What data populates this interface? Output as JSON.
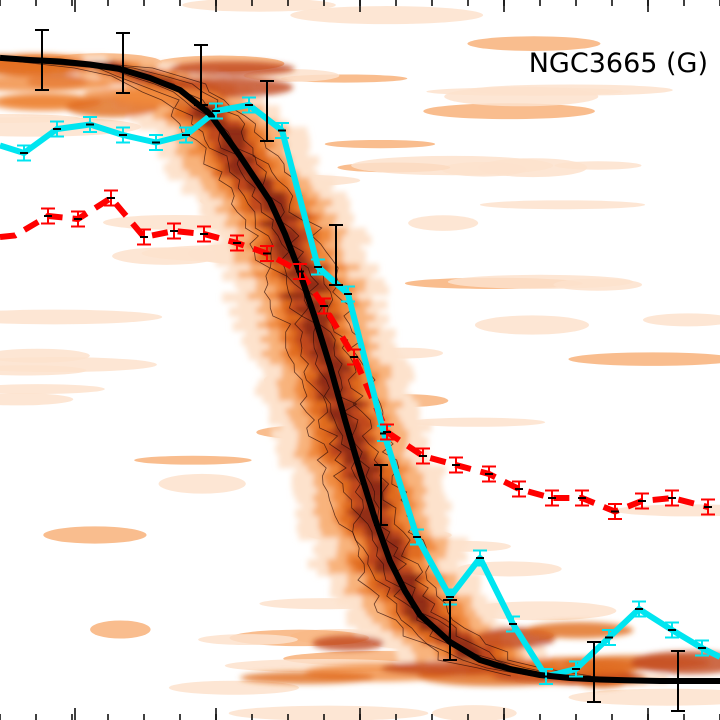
{
  "chart_data": {
    "type": "line",
    "title": "NGC3665 (G)",
    "xlim": [
      0,
      24
    ],
    "ylim": [
      0,
      24
    ],
    "grid": false,
    "background": "density-contours",
    "colors": {
      "background_ramp": [
        "#fde2cc",
        "#f8b27a",
        "#f08a3c",
        "#e06a1c",
        "#c0461a",
        "#8e2a18",
        "#6a1812"
      ],
      "model": "#000000",
      "observed": "#00e5f0",
      "dispersion": "#ff0000",
      "errorbar": "#000000"
    },
    "series": [
      {
        "key": "model",
        "style": "solid-black",
        "x": [
          0,
          1.0,
          2.0,
          3.0,
          4.0,
          5.0,
          6.0,
          7.0,
          8.0,
          9.0,
          9.5,
          10.0,
          10.5,
          11.0,
          11.5,
          12.0,
          12.5,
          13.0,
          13.5,
          14.0,
          15.0,
          16.0,
          17.0,
          18.0,
          19.0,
          20.0,
          21.0,
          22.0,
          23.0,
          24.0
        ],
        "y": [
          22.07,
          22.0,
          21.95,
          21.85,
          21.7,
          21.4,
          21.0,
          20.2,
          18.8,
          17.3,
          16.2,
          14.9,
          13.4,
          11.8,
          10.0,
          8.3,
          6.7,
          5.3,
          4.3,
          3.5,
          2.6,
          2.0,
          1.7,
          1.5,
          1.4,
          1.35,
          1.32,
          1.3,
          1.3,
          1.3
        ],
        "errorbars": [
          {
            "x": 1.4,
            "y": 22.0,
            "err": 1.0
          },
          {
            "x": 4.1,
            "y": 21.9,
            "err": 1.0
          },
          {
            "x": 6.7,
            "y": 21.5,
            "err": 1.0
          },
          {
            "x": 8.9,
            "y": 20.3,
            "err": 1.0
          },
          {
            "x": 11.2,
            "y": 15.5,
            "err": 1.0
          },
          {
            "x": 12.7,
            "y": 7.5,
            "err": 1.0
          },
          {
            "x": 15.0,
            "y": 3.0,
            "err": 1.0
          },
          {
            "x": 19.8,
            "y": 1.6,
            "err": 1.0
          },
          {
            "x": 22.6,
            "y": 1.3,
            "err": 1.0
          }
        ]
      },
      {
        "key": "observed",
        "style": "solid-cyan",
        "x": [
          0,
          0.8,
          1.9,
          3.0,
          4.1,
          5.2,
          6.2,
          7.2,
          8.3,
          9.4,
          10.6,
          11.6,
          12.8,
          13.9,
          15.0,
          16.0,
          17.1,
          18.2,
          19.2,
          20.3,
          21.3,
          22.4,
          23.4,
          24.0
        ],
        "y": [
          19.15,
          18.9,
          19.7,
          19.85,
          19.5,
          19.25,
          19.5,
          20.3,
          20.5,
          19.65,
          15.1,
          14.2,
          9.55,
          6.1,
          4.1,
          5.4,
          3.2,
          1.45,
          1.7,
          2.75,
          3.7,
          3.0,
          2.4,
          2.1
        ],
        "err": 0.25
      },
      {
        "key": "dispersion",
        "style": "dashed-red",
        "x": [
          0,
          0.5,
          1.6,
          2.6,
          3.7,
          4.8,
          5.8,
          6.8,
          7.9,
          8.9,
          10.0,
          10.8,
          11.8,
          12.9,
          14.1,
          15.2,
          16.3,
          17.3,
          18.4,
          19.4,
          20.5,
          21.4,
          22.4,
          23.6
        ],
        "y": [
          16.1,
          16.15,
          16.8,
          16.7,
          17.4,
          16.1,
          16.3,
          16.2,
          15.9,
          15.55,
          14.95,
          13.8,
          12.1,
          9.6,
          8.8,
          8.5,
          8.2,
          7.7,
          7.4,
          7.4,
          6.95,
          7.3,
          7.4,
          7.1
        ],
        "err": 0.25
      }
    ],
    "ticks": {
      "x": [
        2.5,
        7.2,
        12.0,
        16.8,
        21.6
      ]
    }
  }
}
